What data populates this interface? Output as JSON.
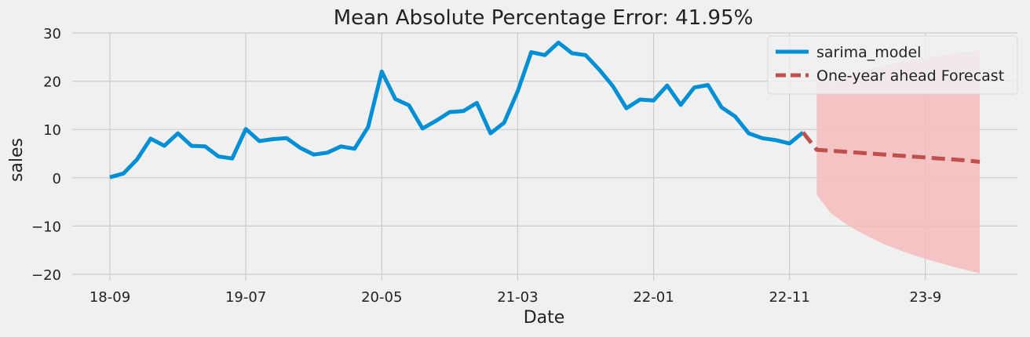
{
  "chart_data": {
    "type": "line",
    "title": "Mean Absolute Percentage Error: 41.95%",
    "xlabel": "Date",
    "ylabel": "sales",
    "ylim": [
      -20,
      30
    ],
    "yticks": [
      30,
      20,
      10,
      0,
      -10,
      -20
    ],
    "ytick_labels": [
      "30",
      "20",
      "10",
      "0",
      "−10",
      "−20"
    ],
    "xticks": [
      "18-09",
      "19-07",
      "20-05",
      "21-03",
      "22-01",
      "22-11",
      "23-9"
    ],
    "grid": true,
    "legend_position": "top-right",
    "series": [
      {
        "name": "sarima_model",
        "color": "#008fd5",
        "style": "solid",
        "x": [
          "18-09",
          "18-10",
          "18-11",
          "18-12",
          "19-01",
          "19-02",
          "19-03",
          "19-04",
          "19-05",
          "19-06",
          "19-07",
          "19-08",
          "19-09",
          "19-10",
          "19-11",
          "19-12",
          "20-01",
          "20-02",
          "20-03",
          "20-04",
          "20-05",
          "20-06",
          "20-07",
          "20-08",
          "20-09",
          "20-10",
          "20-11",
          "20-12",
          "21-01",
          "21-02",
          "21-03",
          "21-04",
          "21-05",
          "21-06",
          "21-07",
          "21-08",
          "21-09",
          "21-10",
          "21-11",
          "21-12",
          "22-01",
          "22-02",
          "22-03",
          "22-04",
          "22-05",
          "22-06",
          "22-07",
          "22-08",
          "22-09",
          "22-10",
          "22-11",
          "22-12"
        ],
        "values": [
          0.1,
          0.9,
          3.8,
          8.1,
          6.6,
          9.2,
          6.6,
          6.5,
          4.4,
          4.0,
          10.1,
          7.6,
          8.0,
          8.2,
          6.2,
          4.8,
          5.2,
          6.5,
          6.0,
          10.5,
          22.0,
          16.3,
          15.0,
          10.2,
          11.8,
          13.6,
          13.8,
          15.5,
          9.2,
          11.4,
          17.9,
          26.0,
          25.4,
          28.0,
          25.8,
          25.4,
          22.4,
          19.0,
          14.4,
          16.2,
          16.0,
          19.1,
          15.1,
          18.7,
          19.2,
          14.6,
          12.7,
          9.2,
          8.2,
          7.8,
          7.1,
          9.4
        ]
      },
      {
        "name": "One-year ahead Forecast",
        "color": "#c0504d",
        "style": "dashed",
        "x": [
          "22-12",
          "23-01",
          "23-02",
          "23-03",
          "23-04",
          "23-05",
          "23-06",
          "23-07",
          "23-08",
          "23-09",
          "23-10",
          "23-11",
          "23-12",
          "24-01"
        ],
        "values": [
          9.4,
          5.8,
          5.6,
          5.4,
          5.2,
          5.0,
          4.8,
          4.6,
          4.4,
          4.2,
          4.0,
          3.8,
          3.6,
          3.3
        ],
        "ci_lower": [
          null,
          -3.5,
          -7.2,
          -9.3,
          -11.0,
          -12.5,
          -13.8,
          -14.9,
          -15.9,
          -16.8,
          -17.6,
          -18.4,
          -19.1,
          -19.8
        ],
        "ci_upper": [
          null,
          21.8,
          19.6,
          20.8,
          21.8,
          22.6,
          23.3,
          23.9,
          24.4,
          24.9,
          25.3,
          25.7,
          26.1,
          26.4
        ],
        "ci_color": "#f4bcbc"
      }
    ]
  }
}
